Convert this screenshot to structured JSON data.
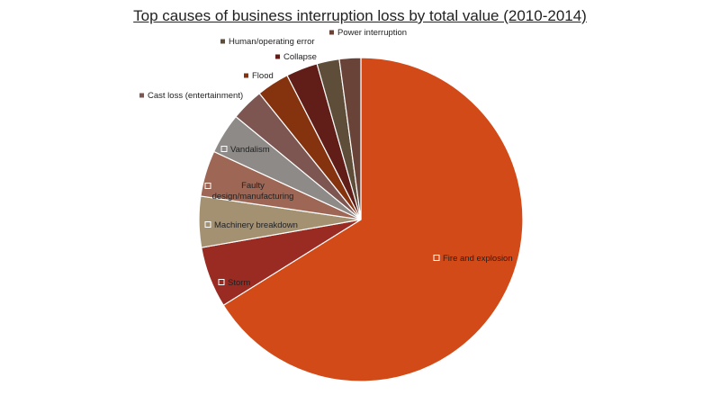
{
  "chart_data": {
    "type": "pie",
    "title": "Top causes of business  interruption loss by total value (2010-2014)",
    "categories": [
      "Fire and explosion",
      "Storm",
      "Machinery breakdown",
      "Faulty design/manufacturing",
      "Vandalism",
      "Cast loss (entertainment)",
      "Flood",
      "Collapse",
      "Human/operating error",
      "Power interruption"
    ],
    "values": [
      65.0,
      6.0,
      5.0,
      4.5,
      4.0,
      3.2,
      3.2,
      3.1,
      2.2,
      2.1
    ],
    "unit": "% of total value",
    "colors": [
      "#D24A18",
      "#992B22",
      "#A39172",
      "#9E6654",
      "#8E8A87",
      "#7D5652",
      "#85320F",
      "#611E18",
      "#5E4D39",
      "#6A4338"
    ],
    "legend_position": "labels placed on and beside slices"
  }
}
